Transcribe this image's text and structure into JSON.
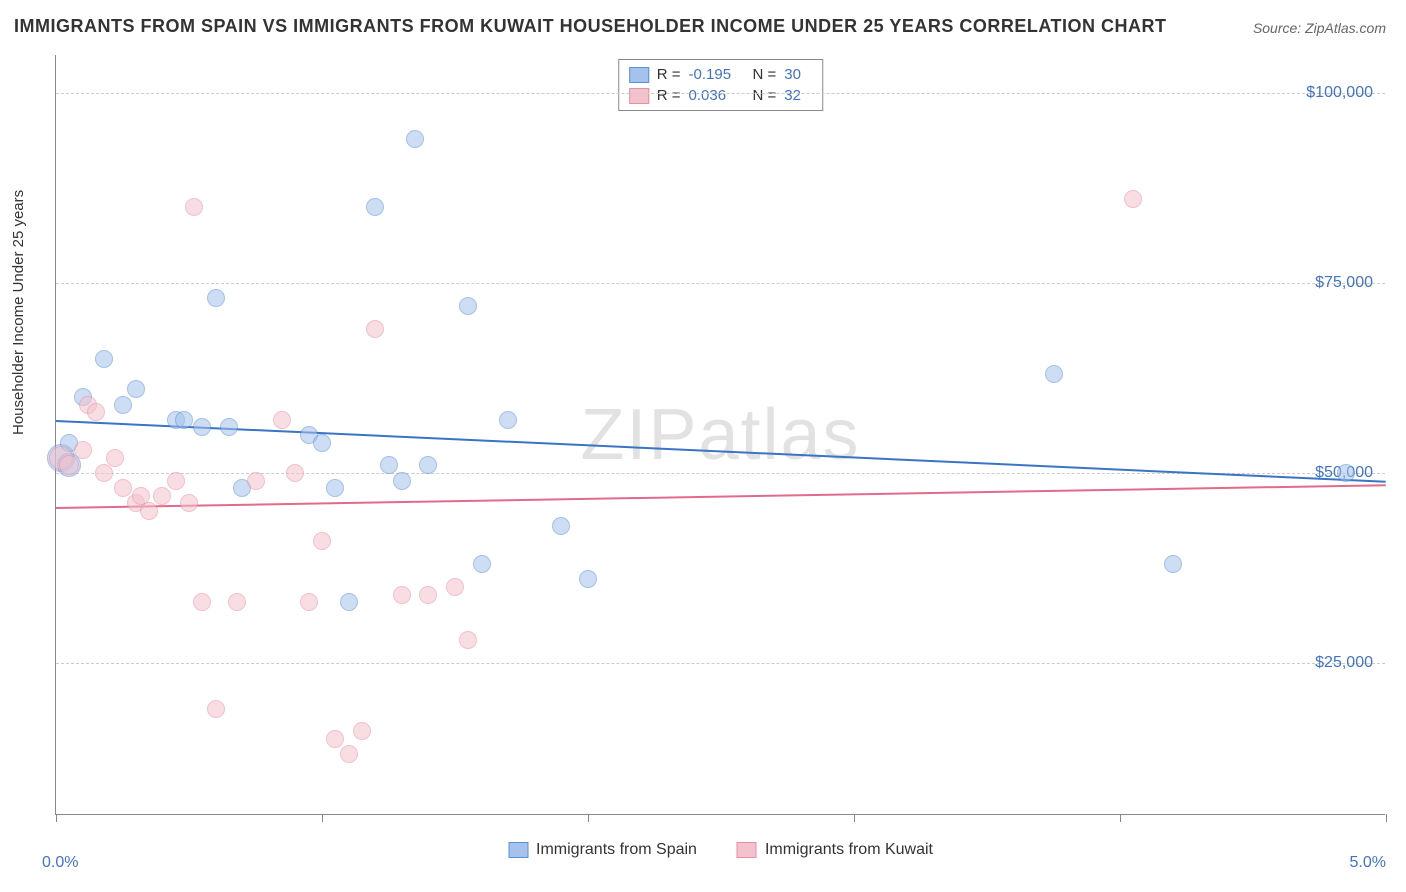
{
  "title": "IMMIGRANTS FROM SPAIN VS IMMIGRANTS FROM KUWAIT HOUSEHOLDER INCOME UNDER 25 YEARS CORRELATION CHART",
  "source_label": "Source: ZipAtlas.com",
  "watermark": "ZIPatlas",
  "chart": {
    "type": "scatter",
    "background_color": "#ffffff",
    "grid_color": "#cccccc",
    "axis_color": "#888888",
    "ylabel": "Householder Income Under 25 years",
    "label_fontsize": 15,
    "tick_fontsize": 16,
    "tick_color": "#4472c4",
    "xlim": [
      0,
      5.0
    ],
    "ylim": [
      5000,
      105000
    ],
    "x_ticks": [
      0.0,
      1.0,
      2.0,
      3.0,
      4.0,
      5.0
    ],
    "x_tick_labels": [
      "0.0%",
      "",
      "",
      "",
      "",
      "5.0%"
    ],
    "y_ticks": [
      25000,
      50000,
      75000,
      100000
    ],
    "y_tick_labels": [
      "$25,000",
      "$50,000",
      "$75,000",
      "$100,000"
    ],
    "marker_radius": 9,
    "marker_opacity": 0.55,
    "marker_border_width": 1.5,
    "series": [
      {
        "name": "Immigrants from Spain",
        "fill_color": "#a4c2ec",
        "border_color": "#5b8fd6",
        "line_color": "#3a74c4",
        "r_label": "R = ",
        "r_value": "-0.195",
        "n_label": "N = ",
        "n_value": "30",
        "regression": {
          "x1": 0.0,
          "y1": 57000,
          "x2": 5.0,
          "y2": 49000
        },
        "points": [
          {
            "x": 0.02,
            "y": 52000,
            "r": 14
          },
          {
            "x": 0.05,
            "y": 51000,
            "r": 12
          },
          {
            "x": 0.1,
            "y": 60000,
            "r": 9
          },
          {
            "x": 0.18,
            "y": 65000,
            "r": 9
          },
          {
            "x": 0.25,
            "y": 59000,
            "r": 9
          },
          {
            "x": 0.3,
            "y": 61000,
            "r": 9
          },
          {
            "x": 0.45,
            "y": 57000,
            "r": 9
          },
          {
            "x": 0.48,
            "y": 57000,
            "r": 9
          },
          {
            "x": 0.55,
            "y": 56000,
            "r": 9
          },
          {
            "x": 0.6,
            "y": 73000,
            "r": 9
          },
          {
            "x": 0.65,
            "y": 56000,
            "r": 9
          },
          {
            "x": 0.7,
            "y": 48000,
            "r": 9
          },
          {
            "x": 0.95,
            "y": 55000,
            "r": 9
          },
          {
            "x": 1.0,
            "y": 54000,
            "r": 9
          },
          {
            "x": 1.05,
            "y": 48000,
            "r": 9
          },
          {
            "x": 1.1,
            "y": 33000,
            "r": 9
          },
          {
            "x": 1.2,
            "y": 85000,
            "r": 9
          },
          {
            "x": 1.25,
            "y": 51000,
            "r": 9
          },
          {
            "x": 1.3,
            "y": 49000,
            "r": 9
          },
          {
            "x": 1.35,
            "y": 94000,
            "r": 9
          },
          {
            "x": 1.4,
            "y": 51000,
            "r": 9
          },
          {
            "x": 1.55,
            "y": 72000,
            "r": 9
          },
          {
            "x": 1.6,
            "y": 38000,
            "r": 9
          },
          {
            "x": 1.7,
            "y": 57000,
            "r": 9
          },
          {
            "x": 1.9,
            "y": 43000,
            "r": 9
          },
          {
            "x": 2.0,
            "y": 36000,
            "r": 9
          },
          {
            "x": 3.75,
            "y": 63000,
            "r": 9
          },
          {
            "x": 4.2,
            "y": 38000,
            "r": 9
          },
          {
            "x": 4.85,
            "y": 50000,
            "r": 9
          },
          {
            "x": 0.05,
            "y": 54000,
            "r": 9
          }
        ]
      },
      {
        "name": "Immigrants from Kuwait",
        "fill_color": "#f4c2cd",
        "border_color": "#e68fa5",
        "line_color": "#e06b8a",
        "r_label": "R = ",
        "r_value": "0.036",
        "n_label": "N = ",
        "n_value": "32",
        "regression": {
          "x1": 0.0,
          "y1": 45500,
          "x2": 5.0,
          "y2": 48500
        },
        "points": [
          {
            "x": 0.02,
            "y": 52000,
            "r": 12
          },
          {
            "x": 0.05,
            "y": 51000,
            "r": 10
          },
          {
            "x": 0.1,
            "y": 53000,
            "r": 9
          },
          {
            "x": 0.12,
            "y": 59000,
            "r": 9
          },
          {
            "x": 0.15,
            "y": 58000,
            "r": 9
          },
          {
            "x": 0.18,
            "y": 50000,
            "r": 9
          },
          {
            "x": 0.22,
            "y": 52000,
            "r": 9
          },
          {
            "x": 0.25,
            "y": 48000,
            "r": 9
          },
          {
            "x": 0.3,
            "y": 46000,
            "r": 9
          },
          {
            "x": 0.32,
            "y": 47000,
            "r": 9
          },
          {
            "x": 0.35,
            "y": 45000,
            "r": 9
          },
          {
            "x": 0.4,
            "y": 47000,
            "r": 9
          },
          {
            "x": 0.45,
            "y": 49000,
            "r": 9
          },
          {
            "x": 0.5,
            "y": 46000,
            "r": 9
          },
          {
            "x": 0.52,
            "y": 85000,
            "r": 9
          },
          {
            "x": 0.55,
            "y": 33000,
            "r": 9
          },
          {
            "x": 0.6,
            "y": 19000,
            "r": 9
          },
          {
            "x": 0.68,
            "y": 33000,
            "r": 9
          },
          {
            "x": 0.75,
            "y": 49000,
            "r": 9
          },
          {
            "x": 0.85,
            "y": 57000,
            "r": 9
          },
          {
            "x": 0.9,
            "y": 50000,
            "r": 9
          },
          {
            "x": 0.95,
            "y": 33000,
            "r": 9
          },
          {
            "x": 1.0,
            "y": 41000,
            "r": 9
          },
          {
            "x": 1.05,
            "y": 15000,
            "r": 9
          },
          {
            "x": 1.1,
            "y": 13000,
            "r": 9
          },
          {
            "x": 1.15,
            "y": 16000,
            "r": 9
          },
          {
            "x": 1.2,
            "y": 69000,
            "r": 9
          },
          {
            "x": 1.3,
            "y": 34000,
            "r": 9
          },
          {
            "x": 1.4,
            "y": 34000,
            "r": 9
          },
          {
            "x": 1.5,
            "y": 35000,
            "r": 9
          },
          {
            "x": 1.55,
            "y": 28000,
            "r": 9
          },
          {
            "x": 4.05,
            "y": 86000,
            "r": 9
          }
        ]
      }
    ]
  }
}
